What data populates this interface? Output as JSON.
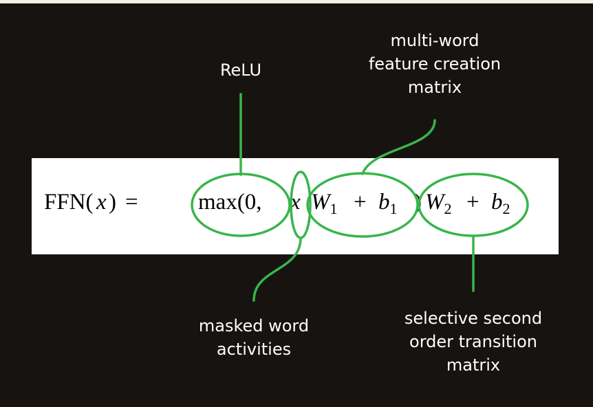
{
  "colors": {
    "background": "#171311",
    "frame": "#f6efe6",
    "formula_bg": "#ffffff",
    "annotation": "#38b54a",
    "text": "#ffffff"
  },
  "formula": {
    "ffn": "FFN(",
    "x": "x",
    "paren_close": ")",
    "equals": "=",
    "max_open": "max(0,",
    "x2": "x",
    "W1": "W",
    "sub1": "1",
    "plus1": "+",
    "b1": "b",
    "sub_b1": "1",
    "close2": ")",
    "W2": "W",
    "sub2": "2",
    "plus2": "+",
    "b2": "b",
    "sub_b2": "2"
  },
  "annotations": {
    "relu": "ReLU",
    "feature_line1": "multi-word",
    "feature_line2": "feature creation",
    "feature_line3": "matrix",
    "masked_line1": "masked word",
    "masked_line2": "activities",
    "second_line1": "selective second",
    "second_line2": "order transition",
    "second_line3": "matrix"
  }
}
